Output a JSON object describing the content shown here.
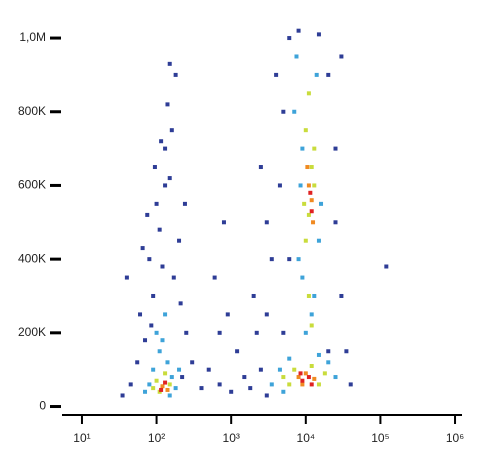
{
  "chart_data": {
    "type": "scatter",
    "xscale": "log",
    "xlim": [
      5.4,
      1240000
    ],
    "ylim": [
      -23000,
      1049000
    ],
    "xticks": [
      {
        "value": 10,
        "label": "10¹"
      },
      {
        "value": 100,
        "label": "10²"
      },
      {
        "value": 1000,
        "label": "10³"
      },
      {
        "value": 10000,
        "label": "10⁴"
      },
      {
        "value": 100000,
        "label": "10⁵"
      },
      {
        "value": 1000000,
        "label": "10⁶"
      }
    ],
    "yticks": [
      0,
      {
        "value": 200000,
        "label": "200K"
      },
      {
        "value": 400000,
        "label": "400K"
      },
      {
        "value": 600000,
        "label": "600K"
      },
      {
        "value": 800000,
        "label": "800K"
      },
      {
        "value": 1000000,
        "label": "1,0M"
      }
    ],
    "series": [
      {
        "color": "#2e3d96",
        "x": [
          60,
          80,
          100,
          130,
          150,
          90,
          200,
          110,
          70,
          170,
          140,
          180,
          55,
          45,
          250,
          300,
          220,
          35,
          130,
          95,
          160,
          120,
          85,
          210,
          75,
          40,
          150,
          115,
          240,
          65,
          500,
          700,
          1000,
          1500,
          600,
          900,
          1200,
          2000,
          3000,
          2500,
          700,
          400,
          1800,
          800,
          2200,
          120000,
          4000,
          5000,
          6000,
          30000,
          25000,
          4500,
          3500,
          30000,
          20000,
          5000,
          25000,
          3000,
          8000,
          15000,
          35000,
          40000,
          3000,
          2500,
          20000,
          6000
        ],
        "values": [
          250000,
          400000,
          550000,
          700000,
          620000,
          300000,
          450000,
          480000,
          180000,
          350000,
          820000,
          900000,
          120000,
          60000,
          200000,
          120000,
          80000,
          30000,
          600000,
          650000,
          750000,
          380000,
          220000,
          280000,
          520000,
          350000,
          930000,
          720000,
          550000,
          430000,
          100000,
          60000,
          40000,
          80000,
          350000,
          250000,
          150000,
          300000,
          500000,
          650000,
          200000,
          50000,
          50000,
          500000,
          200000,
          380000,
          900000,
          800000,
          1000000,
          950000,
          700000,
          600000,
          400000,
          300000,
          150000,
          200000,
          500000,
          250000,
          1020000,
          1010000,
          150000,
          60000,
          30000,
          100000,
          900000,
          400000
        ]
      },
      {
        "color": "#3ea3d9",
        "x": [
          90,
          110,
          140,
          80,
          160,
          100,
          130,
          70,
          180,
          120,
          200,
          150,
          3500,
          4500,
          6000,
          20000,
          25000,
          5000,
          15000,
          7000,
          14000,
          9000,
          16000,
          8000,
          13000,
          10000,
          7500,
          12000,
          9000,
          15000,
          8500
        ],
        "values": [
          100000,
          150000,
          120000,
          60000,
          80000,
          200000,
          250000,
          40000,
          50000,
          180000,
          100000,
          30000,
          60000,
          100000,
          130000,
          120000,
          80000,
          40000,
          140000,
          800000,
          900000,
          700000,
          550000,
          400000,
          300000,
          200000,
          950000,
          250000,
          350000,
          450000,
          600000
        ]
      },
      {
        "color": "#c9dc3c",
        "x": [
          100,
          130,
          110,
          150,
          90,
          5000,
          7000,
          12000,
          18000,
          6000,
          15000,
          11000,
          10000,
          12000,
          11000,
          13000,
          10000,
          12000,
          11000,
          9500,
          13000
        ],
        "values": [
          70000,
          90000,
          40000,
          60000,
          50000,
          80000,
          100000,
          110000,
          90000,
          60000,
          60000,
          850000,
          750000,
          650000,
          520000,
          600000,
          450000,
          220000,
          300000,
          550000,
          700000
        ]
      },
      {
        "color": "#f08a22",
        "x": [
          120,
          140,
          8000,
          10000,
          13000,
          9000,
          11000,
          12000,
          10500,
          12500
        ],
        "values": [
          55000,
          45000,
          80000,
          90000,
          75000,
          60000,
          600000,
          560000,
          650000,
          500000
        ]
      },
      {
        "color": "#e02222",
        "x": [
          115,
          130,
          9000,
          11000,
          12000,
          8500,
          11500,
          12000
        ],
        "values": [
          45000,
          65000,
          70000,
          80000,
          60000,
          90000,
          580000,
          530000
        ]
      }
    ]
  }
}
